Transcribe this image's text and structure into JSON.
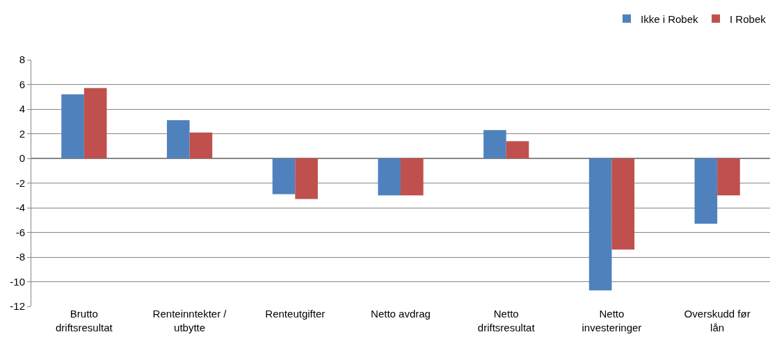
{
  "chart_data": {
    "type": "bar",
    "categories": [
      "Brutto driftsresultat",
      "Renteinntekter / utbytte",
      "Renteutgifter",
      "Netto avdrag",
      "Netto driftsresultat",
      "Netto investeringer",
      "Overskudd før lån"
    ],
    "series": [
      {
        "name": "Ikke i Robek",
        "color": "#4f81bd",
        "values": [
          5.2,
          3.1,
          -2.9,
          -3.0,
          2.3,
          -10.7,
          -5.3
        ]
      },
      {
        "name": "I Robek",
        "color": "#c0504d",
        "values": [
          5.7,
          2.1,
          -3.3,
          -3.0,
          1.4,
          -7.4,
          -3.0
        ]
      }
    ],
    "ylim": [
      -12,
      8
    ],
    "yticks": [
      -12,
      -10,
      -8,
      -6,
      -4,
      -2,
      0,
      2,
      4,
      6,
      8
    ],
    "grid": "y",
    "legend": "top right"
  }
}
